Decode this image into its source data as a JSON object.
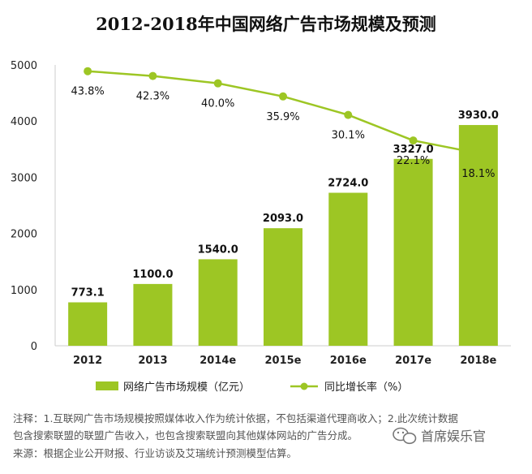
{
  "chart_data": {
    "type": "bar",
    "title": "2012-2018年中国网络广告市场规模及预测",
    "categories": [
      "2012",
      "2013",
      "2014e",
      "2015e",
      "2016e",
      "2017e",
      "2018e"
    ],
    "series": [
      {
        "name": "网络广告市场规模（亿元）",
        "type": "bar",
        "values": [
          773.1,
          1100.0,
          1540.0,
          2093.0,
          2724.0,
          3327.0,
          3930.0
        ],
        "labels": [
          "773.1",
          "1100.0",
          "1540.0",
          "2093.0",
          "2724.0",
          "3327.0",
          "3930.0"
        ],
        "color": "#9dc624"
      },
      {
        "name": "同比增长率（%）",
        "type": "line",
        "values": [
          43.8,
          42.3,
          40.0,
          35.9,
          30.1,
          22.1,
          18.1
        ],
        "labels": [
          "43.8%",
          "42.3%",
          "40.0%",
          "35.9%",
          "30.1%",
          "22.1%",
          "18.1%"
        ],
        "color": "#9dc624"
      }
    ],
    "yticks": [
      "5000",
      "4000",
      "3000",
      "2000",
      "1000",
      "0"
    ],
    "ylim": [
      0,
      5000
    ],
    "xlabel": "",
    "ylabel": "",
    "grid": false,
    "legend": "bottom"
  },
  "footnote": {
    "line1": "注释：1.互联网广告市场规模按照媒体收入作为统计依据，不包括渠道代理商收入；2.此次统计数据",
    "line2": "包含搜索联盟的联盟广告收入，也包含搜索联盟向其他媒体网站的广告分成。",
    "source": "来源：根据企业公开财报、行业访谈及艾瑞统计预测模型估算。"
  },
  "watermark": {
    "text": "首席娱乐官",
    "icon": "wechat-icon"
  }
}
